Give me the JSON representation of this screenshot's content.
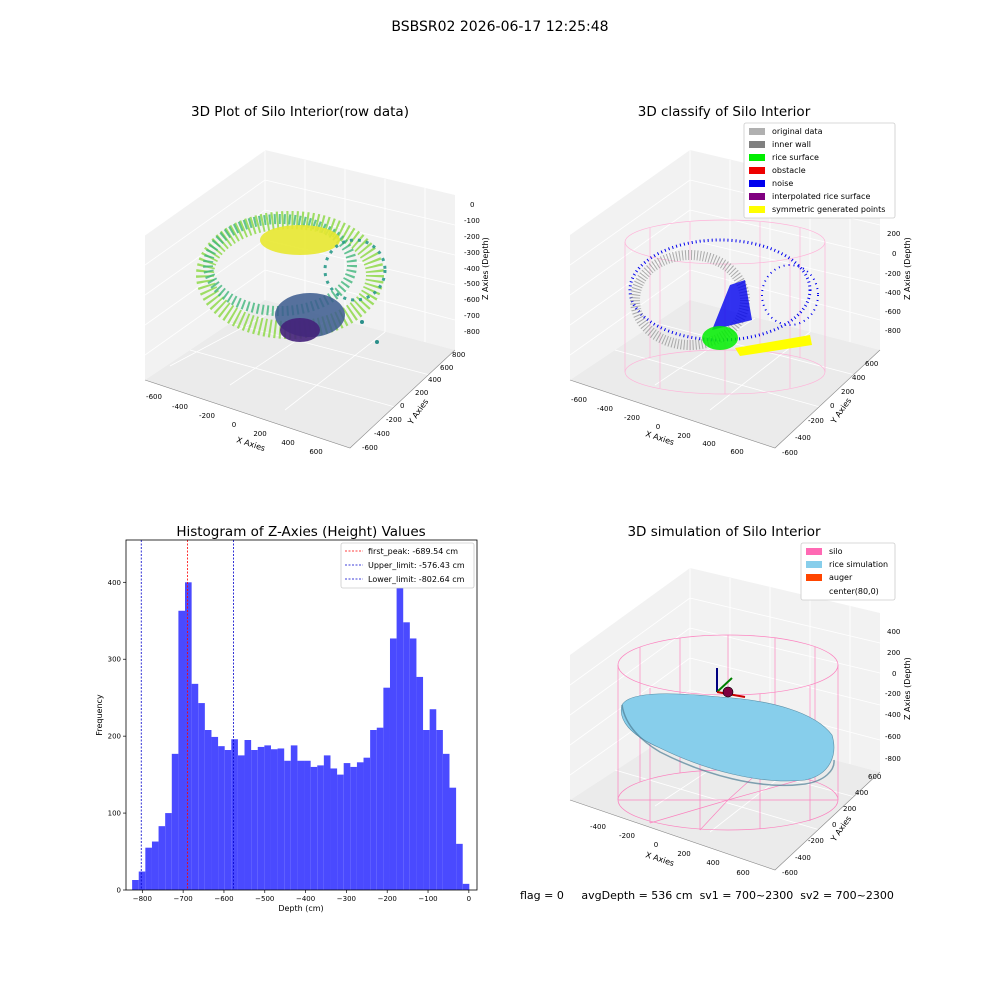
{
  "suptitle": "BSBSR02 2026-06-17 12:25:48",
  "panels": {
    "raw": {
      "title": "3D Plot of Silo Interior(row data)",
      "xlabel": "X Axies",
      "ylabel": "Y Axies",
      "zlabel": "Z Axies (Depth)",
      "xticks": [
        "-600",
        "-400",
        "-200",
        "0",
        "200",
        "400",
        "600"
      ],
      "yticks": [
        "-600",
        "-400",
        "-200",
        "0",
        "200",
        "400",
        "600",
        "800"
      ],
      "zticks": [
        "0",
        "-100",
        "-200",
        "-300",
        "-400",
        "-500",
        "-600",
        "-700",
        "-800"
      ]
    },
    "classify": {
      "title": "3D classify of Silo Interior",
      "xlabel": "X Axies",
      "ylabel": "Y Axies",
      "zlabel": "Z Axies (Depth)",
      "xticks": [
        "-600",
        "-400",
        "-200",
        "0",
        "200",
        "400",
        "600"
      ],
      "yticks": [
        "-600",
        "-400",
        "-200",
        "0",
        "200",
        "400",
        "600"
      ],
      "zticks": [
        "200",
        "0",
        "-200",
        "-400",
        "-600",
        "-800"
      ],
      "legend": [
        {
          "label": "original data",
          "color": "#b0b0b0"
        },
        {
          "label": "inner wall",
          "color": "#808080"
        },
        {
          "label": "rice surface",
          "color": "#00ee00"
        },
        {
          "label": "obstacle",
          "color": "#ee0000"
        },
        {
          "label": "noise",
          "color": "#0000ee"
        },
        {
          "label": "interpolated rice surface",
          "color": "#800080"
        },
        {
          "label": "symmetric generated points",
          "color": "#ffff00"
        }
      ]
    },
    "simulation": {
      "title": "3D simulation of Silo Interior",
      "xlabel": "X Axies",
      "ylabel": "Y Axies",
      "zlabel": "Z Axies (Depth)",
      "xticks": [
        "-400",
        "-200",
        "0",
        "200",
        "400",
        "600"
      ],
      "yticks": [
        "-600",
        "-400",
        "-200",
        "0",
        "200",
        "400",
        "600"
      ],
      "zticks": [
        "400",
        "200",
        "0",
        "-200",
        "-400",
        "-600",
        "-800"
      ],
      "legend": [
        {
          "label": "silo",
          "color": "#ff69b4"
        },
        {
          "label": "rice simulation",
          "color": "#87ceeb"
        },
        {
          "label": "auger",
          "color": "#ff4500"
        },
        {
          "label": "center(80,0)",
          "color": "#ffffff"
        }
      ]
    }
  },
  "status": {
    "flag": "flag = 0",
    "avg_depth": "avgDepth = 536 cm",
    "sv1": "sv1 = 700~2300",
    "sv2": "sv2 = 700~2300"
  },
  "colors": {
    "hist": "#4a4aff",
    "first_peak": "#ff0000",
    "limits": "#0000cc"
  },
  "chart_data": {
    "type": "bar",
    "title": "Histogram of Z-Axies (Height) Values",
    "xlabel": "Depth (cm)",
    "ylabel": "Frequency",
    "xlim": [
      -840,
      20
    ],
    "ylim": [
      0,
      455
    ],
    "xticks": [
      -800,
      -700,
      -600,
      -500,
      -400,
      -300,
      -200,
      -100,
      0
    ],
    "yticks": [
      0,
      100,
      200,
      300,
      400
    ],
    "bin_start": -825,
    "bin_width": 16.2,
    "values": [
      13,
      24,
      55,
      63,
      83,
      100,
      177,
      363,
      400,
      268,
      243,
      208,
      199,
      187,
      182,
      196,
      175,
      195,
      182,
      186,
      188,
      183,
      184,
      168,
      188,
      168,
      168,
      160,
      162,
      175,
      158,
      150,
      165,
      160,
      166,
      172,
      208,
      211,
      263,
      327,
      437,
      348,
      327,
      277,
      208,
      235,
      208,
      177,
      133,
      60,
      8
    ],
    "lines": [
      {
        "label": "first_peak: -689.54 cm",
        "value": -689.54,
        "color": "#ff0000"
      },
      {
        "label": "Upper_limit: -576.43 cm",
        "value": -576.43,
        "color": "#0000cc"
      },
      {
        "label": "Lower_limit: -802.64 cm",
        "value": -802.64,
        "color": "#0000cc"
      }
    ]
  }
}
